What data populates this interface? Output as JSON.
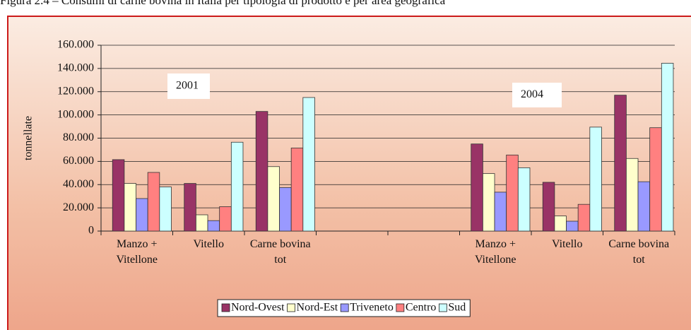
{
  "chart_data": {
    "type": "bar",
    "title": "Figura 2.4 – Consumi di carne bovina in Italia per tipologia di prodotto e per area geografica",
    "y_label": "tonnellate",
    "annotations": [
      "2001",
      "2004"
    ],
    "categories": [
      "Manzo + Vitellone",
      "Vitello",
      "Carne bovina tot",
      null,
      null,
      "Manzo + Vitellone",
      "Vitello",
      "Carne bovina tot"
    ],
    "series": [
      {
        "name": "Nord-Ovest",
        "color": "#993366",
        "values": [
          61500,
          41000,
          103000,
          null,
          null,
          75000,
          42000,
          117000
        ]
      },
      {
        "name": "Nord-Est",
        "color": "#ffffcc",
        "values": [
          41000,
          14000,
          55500,
          null,
          null,
          49500,
          13000,
          62500
        ]
      },
      {
        "name": "Triveneto",
        "color": "#9999ff",
        "values": [
          28000,
          9000,
          37500,
          null,
          null,
          33500,
          8500,
          42500
        ]
      },
      {
        "name": "Centro",
        "color": "#ff8080",
        "values": [
          50500,
          21000,
          71500,
          null,
          null,
          65500,
          23000,
          89000
        ]
      },
      {
        "name": "Sud",
        "color": "#ccffff",
        "values": [
          38000,
          76500,
          115000,
          null,
          null,
          54500,
          89500,
          144500
        ]
      }
    ],
    "ylim": [
      0,
      160000
    ],
    "yticks": [
      0,
      {
        "value": 20000,
        "label": "20.000"
      },
      {
        "value": 40000,
        "label": "40.000"
      },
      {
        "value": 60000,
        "label": "60.000"
      },
      {
        "value": 80000,
        "label": "80.000"
      },
      {
        "value": 100000,
        "label": "100.000"
      },
      {
        "value": 120000,
        "label": "120.000"
      },
      {
        "value": 140000,
        "label": "140.000"
      },
      {
        "value": 160000,
        "label": "160.000"
      }
    ],
    "grid": true,
    "legend": "bottom"
  }
}
